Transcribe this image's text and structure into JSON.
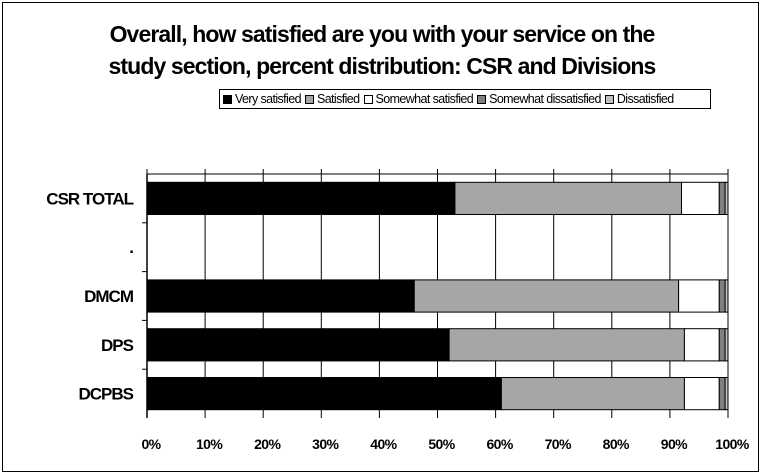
{
  "chart_data": {
    "type": "bar",
    "orientation": "horizontal",
    "stacked": true,
    "title_lines": [
      "Overall, how satisfied are you with your service on the",
      "study section, percent distribution:  CSR and Divisions"
    ],
    "categories": [
      "CSR TOTAL",
      ".",
      "DMCM",
      "DPS",
      "DCPBS"
    ],
    "series": [
      {
        "name": "Very satisfied",
        "color": "#000000",
        "values": [
          53,
          0,
          46,
          52,
          61
        ]
      },
      {
        "name": "Satisfied",
        "color": "#a6a6a6",
        "values": [
          39,
          0,
          45.5,
          40.5,
          31.5
        ]
      },
      {
        "name": "Somewhat satisfied",
        "color": "#ffffff",
        "values": [
          6.5,
          0,
          7,
          6,
          6
        ]
      },
      {
        "name": "Somewhat dissatisfied",
        "color": "#808080",
        "values": [
          1,
          0,
          1,
          1,
          1
        ]
      },
      {
        "name": "Dissatisfied",
        "color": "#c0c0c0",
        "values": [
          0.5,
          0,
          0.5,
          0.5,
          0.5
        ]
      }
    ],
    "x_ticks": [
      "0%",
      "10%",
      "20%",
      "30%",
      "40%",
      "50%",
      "60%",
      "70%",
      "80%",
      "90%",
      "100%"
    ],
    "xlim": [
      0,
      100
    ],
    "grid": true,
    "legend_position": "top"
  }
}
